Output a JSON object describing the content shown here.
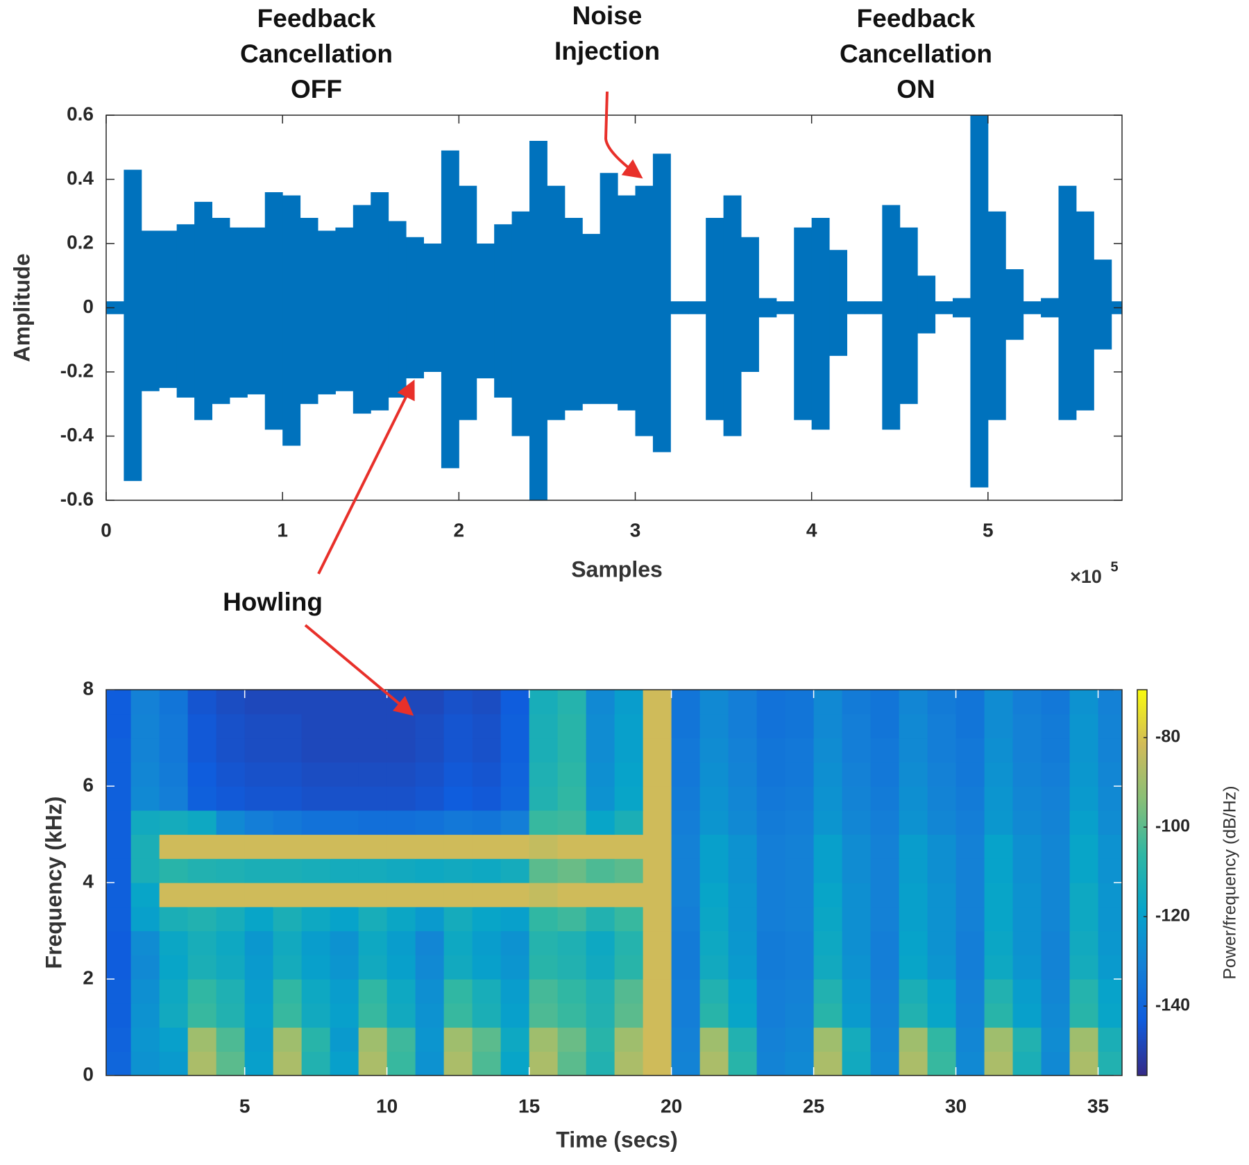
{
  "chart_data": [
    {
      "type": "waveform",
      "color": "#0072bd",
      "annotations": [
        {
          "lines": [
            "Feedback",
            "Cancellation",
            "OFF"
          ]
        },
        {
          "lines": [
            "Noise",
            "Injection"
          ]
        },
        {
          "lines": [
            "Feedback",
            "Cancellation",
            "ON"
          ]
        },
        {
          "lines": [
            "Howling"
          ]
        }
      ],
      "y_label": "Amplitude",
      "x_label": "Samples",
      "x_multiplier": {
        "base": "×10",
        "power": "5"
      },
      "xlim": [
        0,
        576000
      ],
      "ylim": [
        -0.6,
        0.6
      ],
      "xticks": [
        0,
        {
          "value": 100000,
          "label": "1"
        },
        {
          "value": 200000,
          "label": "2"
        },
        {
          "value": 300000,
          "label": "3"
        },
        {
          "value": 400000,
          "label": "4"
        },
        {
          "value": 500000,
          "label": "5"
        }
      ],
      "yticks": [
        -0.6,
        -0.4,
        -0.2,
        0,
        0.2,
        0.4,
        0.6
      ],
      "x": [
        5000,
        15000,
        25000,
        35000,
        45000,
        55000,
        65000,
        75000,
        85000,
        95000,
        105000,
        115000,
        125000,
        135000,
        145000,
        155000,
        165000,
        175000,
        185000,
        195000,
        205000,
        215000,
        225000,
        235000,
        245000,
        255000,
        265000,
        275000,
        285000,
        295000,
        305000,
        315000,
        325000,
        335000,
        345000,
        355000,
        365000,
        375000,
        385000,
        395000,
        405000,
        415000,
        425000,
        435000,
        445000,
        455000,
        465000,
        475000,
        485000,
        495000,
        505000,
        515000,
        525000,
        535000,
        545000,
        555000,
        565000,
        575000
      ],
      "upper": [
        0.02,
        0.43,
        0.24,
        0.24,
        0.26,
        0.33,
        0.28,
        0.25,
        0.25,
        0.36,
        0.35,
        0.28,
        0.24,
        0.25,
        0.32,
        0.36,
        0.27,
        0.22,
        0.2,
        0.49,
        0.38,
        0.2,
        0.26,
        0.3,
        0.52,
        0.38,
        0.28,
        0.23,
        0.42,
        0.35,
        0.38,
        0.48,
        0.02,
        0.02,
        0.28,
        0.35,
        0.22,
        0.03,
        0.02,
        0.25,
        0.28,
        0.18,
        0.02,
        0.02,
        0.32,
        0.25,
        0.1,
        0.02,
        0.03,
        0.6,
        0.3,
        0.12,
        0.02,
        0.03,
        0.38,
        0.3,
        0.15,
        0.02
      ],
      "lower": [
        -0.02,
        -0.54,
        -0.26,
        -0.25,
        -0.28,
        -0.35,
        -0.3,
        -0.28,
        -0.27,
        -0.38,
        -0.43,
        -0.3,
        -0.27,
        -0.26,
        -0.33,
        -0.32,
        -0.28,
        -0.22,
        -0.2,
        -0.5,
        -0.35,
        -0.22,
        -0.28,
        -0.4,
        -0.6,
        -0.35,
        -0.32,
        -0.3,
        -0.3,
        -0.32,
        -0.4,
        -0.45,
        -0.02,
        -0.02,
        -0.35,
        -0.4,
        -0.2,
        -0.03,
        -0.02,
        -0.35,
        -0.38,
        -0.15,
        -0.02,
        -0.02,
        -0.38,
        -0.3,
        -0.08,
        -0.02,
        -0.03,
        -0.56,
        -0.35,
        -0.1,
        -0.02,
        -0.03,
        -0.35,
        -0.32,
        -0.13,
        -0.02
      ]
    },
    {
      "type": "heatmap",
      "x_label": "Time (secs)",
      "y_label": "Frequency (kHz)",
      "colorbar_label": "Power/frequency (dB/Hz)",
      "xlim": [
        0.13,
        35.84
      ],
      "ylim": [
        0,
        8
      ],
      "clim": [
        -155.5,
        -69.3
      ],
      "xticks": [
        5,
        10,
        15,
        20,
        25,
        30,
        35
      ],
      "yticks": [
        0,
        2,
        4,
        6,
        8
      ],
      "cticks": [
        -140,
        -120,
        -100,
        -80
      ],
      "colormap": [
        "#352a87",
        "#0f5cdd",
        "#1481d6",
        "#06a4ca",
        "#2eb7a4",
        "#87bf77",
        "#d1bb59",
        "#f9fb0e"
      ],
      "x": [
        0.5,
        1.5,
        2.5,
        3.5,
        4.5,
        5.5,
        6.5,
        7.5,
        8.5,
        9.5,
        10.5,
        11.5,
        12.5,
        13.5,
        14.5,
        15.5,
        16.5,
        17.5,
        18.5,
        19.5,
        20.5,
        21.5,
        22.5,
        23.5,
        24.5,
        25.5,
        26.5,
        27.5,
        28.5,
        29.5,
        30.5,
        31.5,
        32.5,
        33.5,
        34.5,
        35.5
      ],
      "y": [
        0.25,
        0.75,
        1.25,
        1.75,
        2.25,
        2.75,
        3.25,
        3.75,
        4.25,
        4.75,
        5.25,
        5.75,
        6.25,
        6.75,
        7.25,
        7.75
      ],
      "values": [
        [
          -140,
          -125,
          -122,
          -88,
          -100,
          -120,
          -88,
          -110,
          -120,
          -88,
          -105,
          -125,
          -88,
          -102,
          -118,
          -88,
          -100,
          -110,
          -88,
          -82,
          -130,
          -88,
          -108,
          -130,
          -128,
          -88,
          -115,
          -128,
          -88,
          -105,
          -128,
          -88,
          -112,
          -128,
          -88,
          -110
        ],
        [
          -141,
          -124,
          -120,
          -90,
          -102,
          -121,
          -90,
          -108,
          -122,
          -90,
          -104,
          -124,
          -90,
          -100,
          -116,
          -90,
          -98,
          -108,
          -90,
          -82,
          -131,
          -90,
          -110,
          -131,
          -129,
          -90,
          -114,
          -129,
          -90,
          -106,
          -129,
          -90,
          -110,
          -127,
          -90,
          -112
        ],
        [
          -142,
          -125,
          -115,
          -105,
          -110,
          -120,
          -105,
          -115,
          -120,
          -105,
          -115,
          -125,
          -105,
          -112,
          -120,
          -102,
          -105,
          -110,
          -100,
          -82,
          -132,
          -108,
          -118,
          -132,
          -130,
          -108,
          -122,
          -130,
          -110,
          -118,
          -130,
          -108,
          -120,
          -128,
          -108,
          -118
        ],
        [
          -142,
          -126,
          -116,
          -106,
          -111,
          -121,
          -106,
          -116,
          -121,
          -106,
          -116,
          -126,
          -106,
          -113,
          -121,
          -103,
          -106,
          -111,
          -101,
          -82,
          -132,
          -110,
          -119,
          -132,
          -131,
          -110,
          -123,
          -131,
          -112,
          -119,
          -131,
          -110,
          -121,
          -129,
          -109,
          -119
        ],
        [
          -143,
          -128,
          -118,
          -112,
          -115,
          -122,
          -114,
          -120,
          -124,
          -115,
          -120,
          -128,
          -115,
          -120,
          -124,
          -108,
          -110,
          -115,
          -108,
          -82,
          -133,
          -115,
          -122,
          -133,
          -132,
          -115,
          -125,
          -132,
          -118,
          -124,
          -132,
          -116,
          -124,
          -130,
          -114,
          -122
        ],
        [
          -143,
          -127,
          -117,
          -113,
          -116,
          -123,
          -115,
          -121,
          -125,
          -116,
          -121,
          -129,
          -116,
          -121,
          -125,
          -109,
          -111,
          -116,
          -109,
          -82,
          -133,
          -116,
          -123,
          -133,
          -132,
          -116,
          -126,
          -132,
          -119,
          -125,
          -132,
          -117,
          -125,
          -130,
          -115,
          -123
        ],
        [
          -142,
          -120,
          -112,
          -110,
          -113,
          -118,
          -112,
          -116,
          -119,
          -113,
          -117,
          -122,
          -114,
          -118,
          -120,
          -106,
          -104,
          -110,
          -105,
          -82,
          -132,
          -117,
          -124,
          -132,
          -131,
          -117,
          -126,
          -131,
          -120,
          -125,
          -131,
          -118,
          -125,
          -129,
          -116,
          -124
        ],
        [
          -142,
          -118,
          -82,
          -82,
          -82,
          -82,
          -82,
          -82,
          -82,
          -82,
          -82,
          -82,
          -82,
          -82,
          -82,
          -84,
          -82,
          -82,
          -82,
          -82,
          -131,
          -118,
          -124,
          -132,
          -131,
          -118,
          -126,
          -131,
          -120,
          -125,
          -131,
          -118,
          -125,
          -129,
          -116,
          -124
        ],
        [
          -142,
          -112,
          -108,
          -110,
          -111,
          -112,
          -112,
          -113,
          -114,
          -114,
          -115,
          -116,
          -115,
          -116,
          -114,
          -100,
          -98,
          -102,
          -100,
          -82,
          -131,
          -120,
          -125,
          -132,
          -131,
          -120,
          -127,
          -131,
          -121,
          -126,
          -131,
          -119,
          -126,
          -129,
          -118,
          -125
        ],
        [
          -142,
          -112,
          -82,
          -82,
          -82,
          -82,
          -82,
          -82,
          -82,
          -82,
          -82,
          -82,
          -82,
          -82,
          -82,
          -84,
          -82,
          -82,
          -82,
          -82,
          -131,
          -120,
          -125,
          -132,
          -131,
          -120,
          -127,
          -131,
          -121,
          -126,
          -131,
          -119,
          -126,
          -129,
          -118,
          -125
        ],
        [
          -142,
          -115,
          -114,
          -116,
          -128,
          -132,
          -134,
          -136,
          -136,
          -137,
          -137,
          -136,
          -134,
          -135,
          -132,
          -105,
          -104,
          -118,
          -112,
          -82,
          -132,
          -124,
          -128,
          -133,
          -132,
          -124,
          -129,
          -132,
          -125,
          -129,
          -132,
          -123,
          -128,
          -130,
          -120,
          -127
        ],
        [
          -142,
          -128,
          -132,
          -142,
          -144,
          -145,
          -145,
          -146,
          -146,
          -146,
          -146,
          -145,
          -143,
          -144,
          -140,
          -110,
          -106,
          -125,
          -118,
          -82,
          -133,
          -125,
          -129,
          -134,
          -133,
          -125,
          -130,
          -133,
          -126,
          -130,
          -133,
          -124,
          -129,
          -131,
          -122,
          -128
        ],
        [
          -142,
          -129,
          -133,
          -143,
          -145,
          -146,
          -146,
          -147,
          -147,
          -147,
          -147,
          -146,
          -144,
          -145,
          -141,
          -111,
          -107,
          -126,
          -119,
          -82,
          -134,
          -126,
          -130,
          -135,
          -134,
          -126,
          -131,
          -134,
          -127,
          -131,
          -134,
          -125,
          -130,
          -132,
          -123,
          -129
        ],
        [
          -142,
          -130,
          -134,
          -144,
          -146,
          -147,
          -147,
          -148,
          -148,
          -148,
          -148,
          -147,
          -145,
          -146,
          -142,
          -112,
          -108,
          -127,
          -120,
          -82,
          -134,
          -127,
          -131,
          -135,
          -134,
          -127,
          -132,
          -134,
          -128,
          -132,
          -134,
          -126,
          -131,
          -133,
          -124,
          -130
        ],
        [
          -143,
          -130,
          -134,
          -144,
          -146,
          -147,
          -147,
          -148,
          -148,
          -148,
          -148,
          -147,
          -145,
          -146,
          -142,
          -112,
          -108,
          -127,
          -120,
          -82,
          -135,
          -128,
          -132,
          -136,
          -135,
          -128,
          -132,
          -135,
          -128,
          -132,
          -135,
          -127,
          -131,
          -133,
          -124,
          -130
        ],
        [
          -143,
          -131,
          -135,
          -145,
          -147,
          -148,
          -148,
          -148,
          -148,
          -148,
          -148,
          -148,
          -146,
          -147,
          -143,
          -113,
          -109,
          -128,
          -121,
          -82,
          -135,
          -128,
          -132,
          -136,
          -135,
          -128,
          -133,
          -135,
          -129,
          -133,
          -135,
          -127,
          -132,
          -134,
          -125,
          -131
        ]
      ]
    }
  ]
}
